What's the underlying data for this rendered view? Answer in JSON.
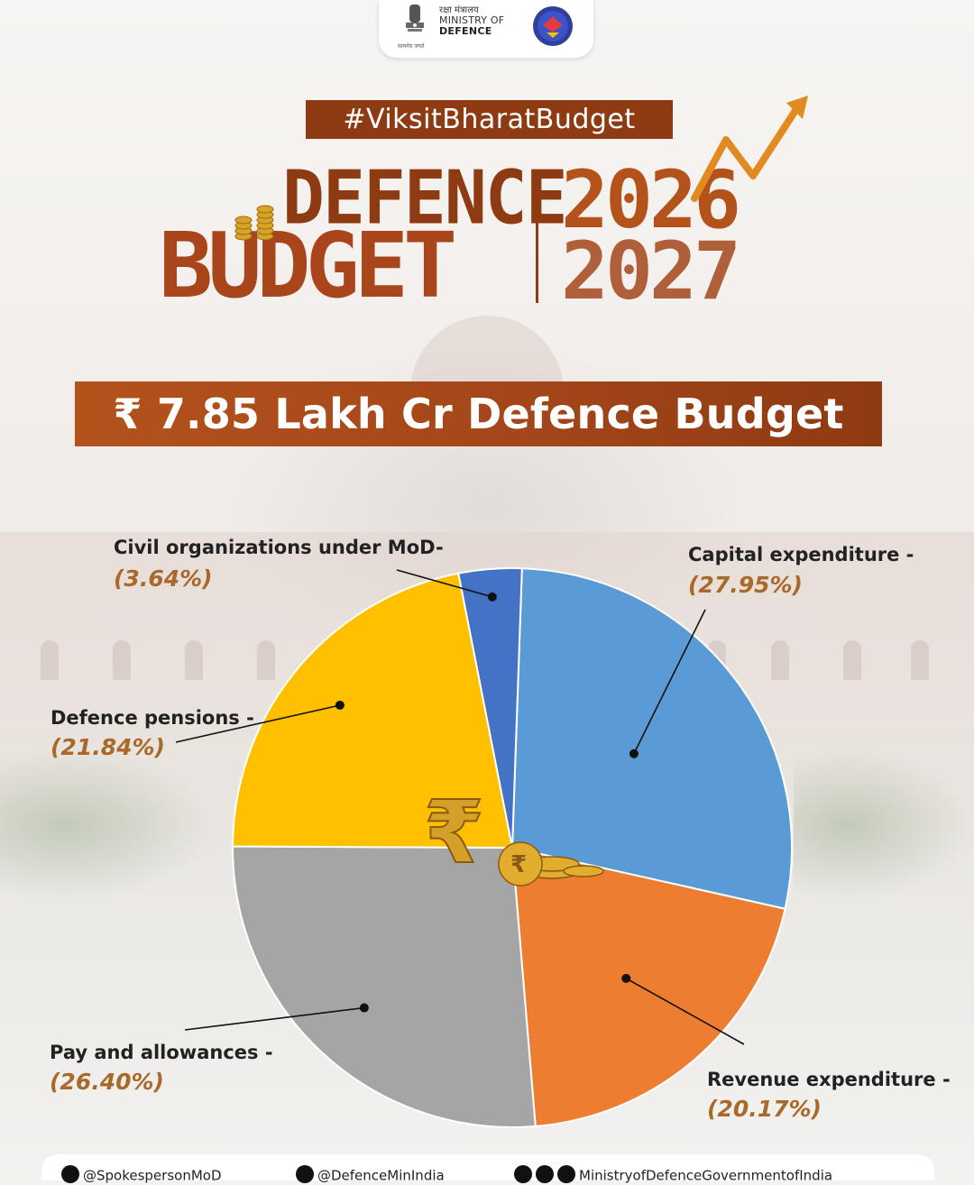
{
  "header": {
    "ministry_hindi": "रक्षा मंत्रालय",
    "ministry_line1": "MINISTRY OF",
    "ministry_line2": "DEFENCE",
    "emblem_caption": "सत्यमेव जयते"
  },
  "hashtag": "#ViksitBharatBudget",
  "title": {
    "line1": "DEFENCE",
    "line2": "BUDGET",
    "year_top": "2026",
    "year_bottom": "2027"
  },
  "banner": "₹ 7.85 Lakh Cr Defence Budget",
  "chart_data": {
    "type": "pie",
    "title": "",
    "slices": [
      {
        "label": "Capital expenditure -",
        "value": 27.95,
        "value_label": "(27.95%)",
        "color": "#5b9bd5"
      },
      {
        "label": "Revenue expenditure -",
        "value": 20.17,
        "value_label": "(20.17%)",
        "color": "#ed7d31"
      },
      {
        "label": "Pay and allowances -",
        "value": 26.4,
        "value_label": "(26.40%)",
        "color": "#a5a5a5"
      },
      {
        "label": "Defence pensions -",
        "value": 21.84,
        "value_label": "(21.84%)",
        "color": "#ffc000"
      },
      {
        "label": "Civil organizations under MoD-",
        "value": 3.64,
        "value_label": "(3.64%)",
        "color": "#4472c4"
      }
    ],
    "legend": "callout labels"
  },
  "footer": {
    "handles": [
      {
        "icon": "x-icon",
        "text": "@SpokespersonMoD"
      },
      {
        "icon": "instagram-icon",
        "text": "@DefenceMinIndia"
      },
      {
        "icon": "social-icons",
        "text": "MinistryofDefenceGovernmentofIndia"
      }
    ]
  },
  "colors": {
    "brand_brown": "#8e3a12",
    "accent_orange": "#b4521c",
    "percent_gold": "#a9692a"
  }
}
